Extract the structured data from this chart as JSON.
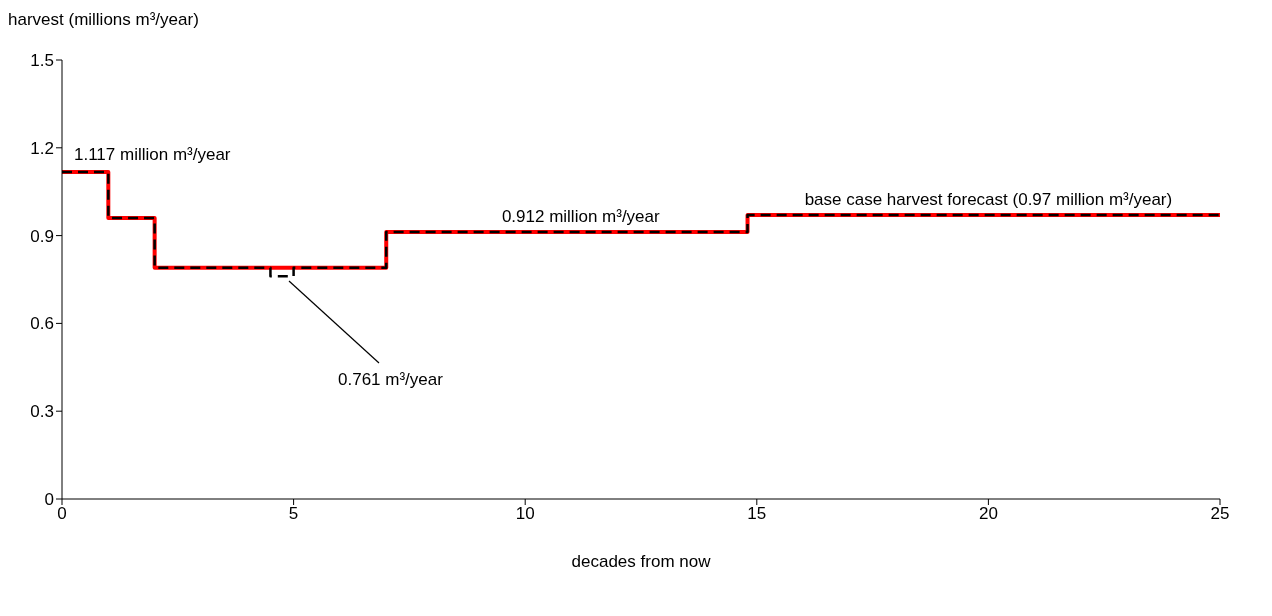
{
  "chart_data": {
    "type": "step",
    "xlabel": "decades from now",
    "ylabel": "harvest (millions m³/year)",
    "xlim": [
      0,
      25
    ],
    "xticks": [
      0,
      5,
      10,
      15,
      20,
      25
    ],
    "ylim": [
      0,
      1.5
    ],
    "yticks": [
      0,
      0.3,
      0.6,
      0.9,
      1.2,
      1.5
    ],
    "grid": false,
    "legend": false,
    "marker": "none",
    "series": [
      {
        "color": "#ff0000",
        "line_style": "solid",
        "x": [
          0,
          1,
          2,
          7,
          14.8,
          25
        ],
        "values": [
          1.117,
          0.96,
          0.79,
          0.912,
          0.97,
          0.97
        ]
      },
      {
        "color": "#000000",
        "line_style": "dashed",
        "x": [
          0,
          1,
          2,
          4.5,
          5,
          7,
          14.8,
          25
        ],
        "values": [
          1.117,
          0.96,
          0.79,
          0.761,
          0.79,
          0.912,
          0.97,
          0.97
        ]
      }
    ],
    "annotations": [
      {
        "text": "1.117 million m³/year",
        "x": 0,
        "y": 1.117
      },
      "0.761 m³/year",
      {
        "text": "0.912 million m³/year",
        "x": 11.2,
        "y": 0.912
      },
      {
        "text": "base case harvest forecast (0.97 million m³/year)",
        "x": 20,
        "y": 0.97
      }
    ]
  }
}
